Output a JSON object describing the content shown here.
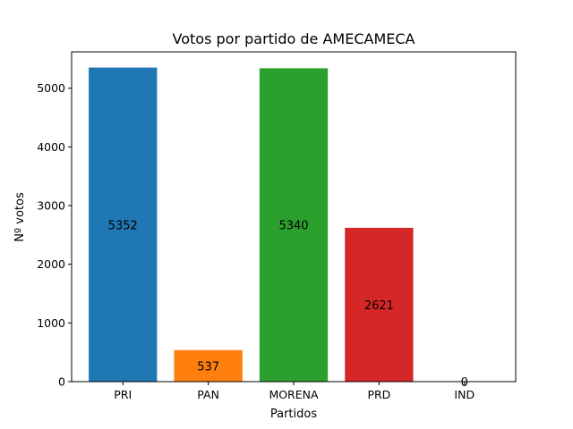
{
  "chart_data": {
    "type": "bar",
    "title": "Votos por partido de AMECAMECA",
    "xlabel": "Partidos",
    "ylabel": "Nº votos",
    "categories": [
      "PRI",
      "PAN",
      "MORENA",
      "PRD",
      "IND"
    ],
    "values": [
      5352,
      537,
      5340,
      2621,
      0
    ],
    "data_labels": [
      "5352",
      "537",
      "5340",
      "2621",
      "0"
    ],
    "colors": [
      "#1f77b4",
      "#ff7f0e",
      "#2ca02c",
      "#d62728",
      "#9467bd"
    ],
    "ylim": [
      0,
      5619.6
    ],
    "yticks": [
      0,
      1000,
      2000,
      3000,
      4000,
      5000
    ],
    "ytick_labels": [
      "0",
      "1000",
      "2000",
      "3000",
      "4000",
      "5000"
    ],
    "grid": false,
    "legend": "none"
  }
}
